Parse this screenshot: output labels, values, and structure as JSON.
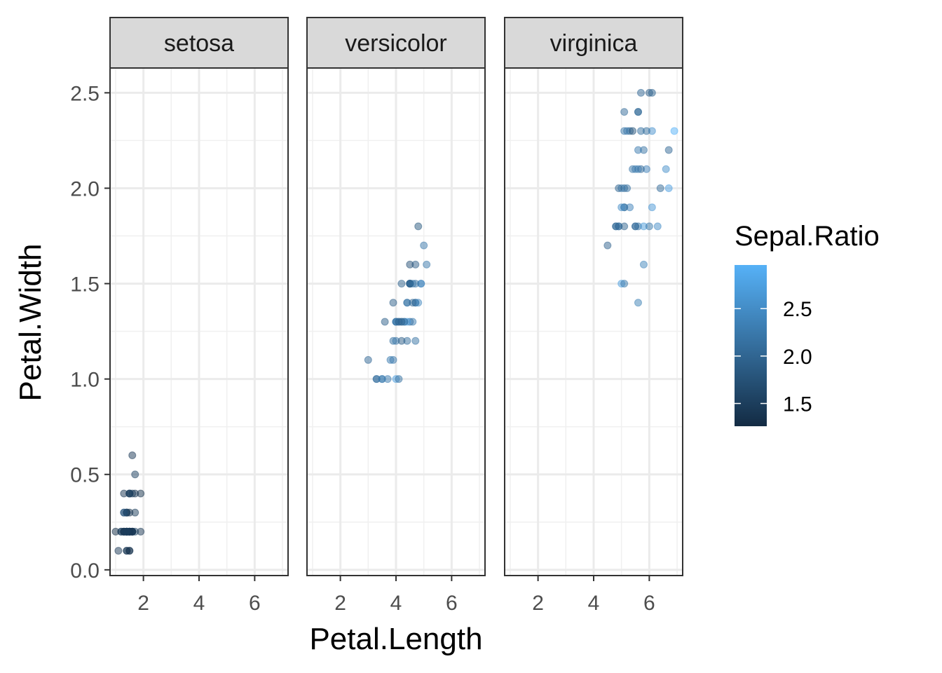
{
  "chart_data": {
    "type": "scatter",
    "facet_by": "Species",
    "xlabel": "Petal.Length",
    "ylabel": "Petal.Width",
    "xlim": [
      0.8,
      7.2
    ],
    "ylim": [
      -0.03,
      2.63
    ],
    "x_ticks": [
      {
        "value": 2,
        "label": "2"
      },
      {
        "value": 4,
        "label": "4"
      },
      {
        "value": 6,
        "label": "6"
      }
    ],
    "y_ticks": [
      {
        "value": 0.0,
        "label": "0.0"
      },
      {
        "value": 0.5,
        "label": "0.5"
      },
      {
        "value": 1.0,
        "label": "1.0"
      },
      {
        "value": 1.5,
        "label": "1.5"
      },
      {
        "value": 2.0,
        "label": "2.0"
      },
      {
        "value": 2.5,
        "label": "2.5"
      }
    ],
    "grid": true,
    "point_alpha": 0.5,
    "color_scale": {
      "title": "Sepal.Ratio",
      "min": 1.26,
      "max": 2.96,
      "low_color": "#132B43",
      "high_color": "#56B1F7",
      "ticks": [
        {
          "value": 1.5,
          "label": "1.5"
        },
        {
          "value": 2.0,
          "label": "2.0"
        },
        {
          "value": 2.5,
          "label": "2.5"
        }
      ],
      "legend_position": "right"
    },
    "panels": [
      {
        "label": "setosa",
        "points": [
          [
            1.4,
            0.2,
            1.46
          ],
          [
            1.4,
            0.2,
            1.63
          ],
          [
            1.3,
            0.2,
            1.47
          ],
          [
            1.5,
            0.2,
            1.48
          ],
          [
            1.4,
            0.2,
            1.39
          ],
          [
            1.7,
            0.4,
            1.38
          ],
          [
            1.4,
            0.3,
            1.35
          ],
          [
            1.5,
            0.2,
            1.47
          ],
          [
            1.4,
            0.2,
            1.52
          ],
          [
            1.5,
            0.1,
            1.58
          ],
          [
            1.5,
            0.2,
            1.46
          ],
          [
            1.6,
            0.2,
            1.41
          ],
          [
            1.4,
            0.1,
            1.6
          ],
          [
            1.1,
            0.1,
            1.43
          ],
          [
            1.2,
            0.2,
            1.45
          ],
          [
            1.5,
            0.4,
            1.3
          ],
          [
            1.3,
            0.4,
            1.38
          ],
          [
            1.4,
            0.3,
            1.46
          ],
          [
            1.7,
            0.3,
            1.5
          ],
          [
            1.5,
            0.3,
            1.34
          ],
          [
            1.7,
            0.2,
            1.59
          ],
          [
            1.5,
            0.4,
            1.38
          ],
          [
            1.0,
            0.2,
            1.28
          ],
          [
            1.7,
            0.5,
            1.55
          ],
          [
            1.9,
            0.2,
            1.41
          ],
          [
            1.6,
            0.2,
            1.67
          ],
          [
            1.6,
            0.4,
            1.47
          ],
          [
            1.5,
            0.2,
            1.49
          ],
          [
            1.4,
            0.2,
            1.53
          ],
          [
            1.6,
            0.2,
            1.47
          ],
          [
            1.6,
            0.2,
            1.55
          ],
          [
            1.5,
            0.4,
            1.59
          ],
          [
            1.5,
            0.1,
            1.27
          ],
          [
            1.4,
            0.2,
            1.31
          ],
          [
            1.5,
            0.2,
            1.58
          ],
          [
            1.2,
            0.2,
            1.56
          ],
          [
            1.3,
            0.2,
            1.57
          ],
          [
            1.4,
            0.1,
            1.36
          ],
          [
            1.3,
            0.2,
            1.48
          ],
          [
            1.5,
            0.2,
            1.5
          ],
          [
            1.3,
            0.3,
            1.43
          ],
          [
            1.3,
            0.3,
            1.96
          ],
          [
            1.3,
            0.2,
            1.38
          ],
          [
            1.6,
            0.6,
            1.43
          ],
          [
            1.9,
            0.4,
            1.34
          ],
          [
            1.4,
            0.3,
            1.6
          ],
          [
            1.6,
            0.2,
            1.34
          ],
          [
            1.4,
            0.2,
            1.44
          ],
          [
            1.5,
            0.2,
            1.43
          ],
          [
            1.4,
            0.2,
            1.52
          ]
        ]
      },
      {
        "label": "versicolor",
        "points": [
          [
            4.7,
            1.4,
            2.19
          ],
          [
            4.5,
            1.5,
            2.0
          ],
          [
            4.9,
            1.5,
            2.23
          ],
          [
            4.0,
            1.3,
            2.39
          ],
          [
            4.6,
            1.5,
            2.32
          ],
          [
            4.5,
            1.3,
            2.04
          ],
          [
            4.7,
            1.6,
            1.91
          ],
          [
            3.3,
            1.0,
            2.04
          ],
          [
            4.6,
            1.3,
            2.28
          ],
          [
            3.9,
            1.4,
            1.93
          ],
          [
            3.5,
            1.0,
            2.5
          ],
          [
            4.2,
            1.5,
            1.97
          ],
          [
            4.0,
            1.0,
            2.73
          ],
          [
            4.7,
            1.4,
            2.1
          ],
          [
            3.6,
            1.3,
            1.93
          ],
          [
            4.4,
            1.4,
            2.16
          ],
          [
            4.5,
            1.5,
            1.87
          ],
          [
            4.1,
            1.0,
            2.15
          ],
          [
            4.5,
            1.5,
            2.82
          ],
          [
            3.9,
            1.1,
            2.24
          ],
          [
            4.8,
            1.8,
            1.84
          ],
          [
            4.0,
            1.3,
            2.18
          ],
          [
            4.9,
            1.5,
            2.52
          ],
          [
            4.7,
            1.2,
            2.18
          ],
          [
            4.3,
            1.3,
            2.21
          ],
          [
            4.4,
            1.4,
            2.2
          ],
          [
            4.8,
            1.4,
            2.43
          ],
          [
            5.0,
            1.7,
            2.23
          ],
          [
            4.5,
            1.5,
            2.07
          ],
          [
            3.5,
            1.0,
            2.19
          ],
          [
            3.8,
            1.1,
            2.29
          ],
          [
            3.7,
            1.0,
            2.29
          ],
          [
            3.9,
            1.2,
            2.15
          ],
          [
            5.1,
            1.6,
            2.22
          ],
          [
            4.5,
            1.5,
            1.8
          ],
          [
            4.5,
            1.6,
            1.76
          ],
          [
            4.7,
            1.5,
            2.16
          ],
          [
            4.4,
            1.3,
            2.74
          ],
          [
            4.1,
            1.3,
            1.87
          ],
          [
            4.0,
            1.3,
            2.2
          ],
          [
            4.4,
            1.2,
            2.12
          ],
          [
            4.6,
            1.4,
            2.03
          ],
          [
            4.0,
            1.2,
            2.23
          ],
          [
            3.3,
            1.0,
            2.17
          ],
          [
            4.2,
            1.3,
            2.07
          ],
          [
            4.2,
            1.2,
            1.9
          ],
          [
            4.2,
            1.3,
            1.97
          ],
          [
            4.3,
            1.3,
            2.14
          ],
          [
            3.0,
            1.1,
            2.04
          ],
          [
            4.1,
            1.3,
            2.04
          ]
        ]
      },
      {
        "label": "virginica",
        "points": [
          [
            6.0,
            2.5,
            1.91
          ],
          [
            5.1,
            1.9,
            2.15
          ],
          [
            5.9,
            2.1,
            2.37
          ],
          [
            5.6,
            1.8,
            2.17
          ],
          [
            5.8,
            2.2,
            2.17
          ],
          [
            6.6,
            2.1,
            2.53
          ],
          [
            4.5,
            1.7,
            1.96
          ],
          [
            6.3,
            1.8,
            2.52
          ],
          [
            5.8,
            1.8,
            2.68
          ],
          [
            6.1,
            2.5,
            2.0
          ],
          [
            5.1,
            2.0,
            2.0
          ],
          [
            5.3,
            1.9,
            2.37
          ],
          [
            5.5,
            2.1,
            2.27
          ],
          [
            5.0,
            2.0,
            2.28
          ],
          [
            5.1,
            2.4,
            2.07
          ],
          [
            5.3,
            2.3,
            2.0
          ],
          [
            5.5,
            1.8,
            2.17
          ],
          [
            6.7,
            2.2,
            2.03
          ],
          [
            6.9,
            2.3,
            2.96
          ],
          [
            5.0,
            1.5,
            2.73
          ],
          [
            5.7,
            2.3,
            2.16
          ],
          [
            4.9,
            2.0,
            2.0
          ],
          [
            6.7,
            2.0,
            2.75
          ],
          [
            4.9,
            1.8,
            2.33
          ],
          [
            5.7,
            2.1,
            2.03
          ],
          [
            6.0,
            1.8,
            2.25
          ],
          [
            4.8,
            1.8,
            2.21
          ],
          [
            4.9,
            1.8,
            2.03
          ],
          [
            5.6,
            2.1,
            2.29
          ],
          [
            5.8,
            1.6,
            2.4
          ],
          [
            6.1,
            1.9,
            2.64
          ],
          [
            6.4,
            2.0,
            2.08
          ],
          [
            5.6,
            2.2,
            2.29
          ],
          [
            5.1,
            1.5,
            2.25
          ],
          [
            5.6,
            1.4,
            2.35
          ],
          [
            6.1,
            2.3,
            2.57
          ],
          [
            5.6,
            2.4,
            1.85
          ],
          [
            5.5,
            1.8,
            2.06
          ],
          [
            4.8,
            1.8,
            2.0
          ],
          [
            5.4,
            2.1,
            2.23
          ],
          [
            5.6,
            2.4,
            2.16
          ],
          [
            5.1,
            2.3,
            2.23
          ],
          [
            5.1,
            1.9,
            2.15
          ],
          [
            5.9,
            2.3,
            2.12
          ],
          [
            5.7,
            2.5,
            2.03
          ],
          [
            5.2,
            2.3,
            2.23
          ],
          [
            5.0,
            1.9,
            2.52
          ],
          [
            5.2,
            2.0,
            2.17
          ],
          [
            5.4,
            2.3,
            1.82
          ],
          [
            5.1,
            1.8,
            1.97
          ]
        ]
      }
    ]
  }
}
